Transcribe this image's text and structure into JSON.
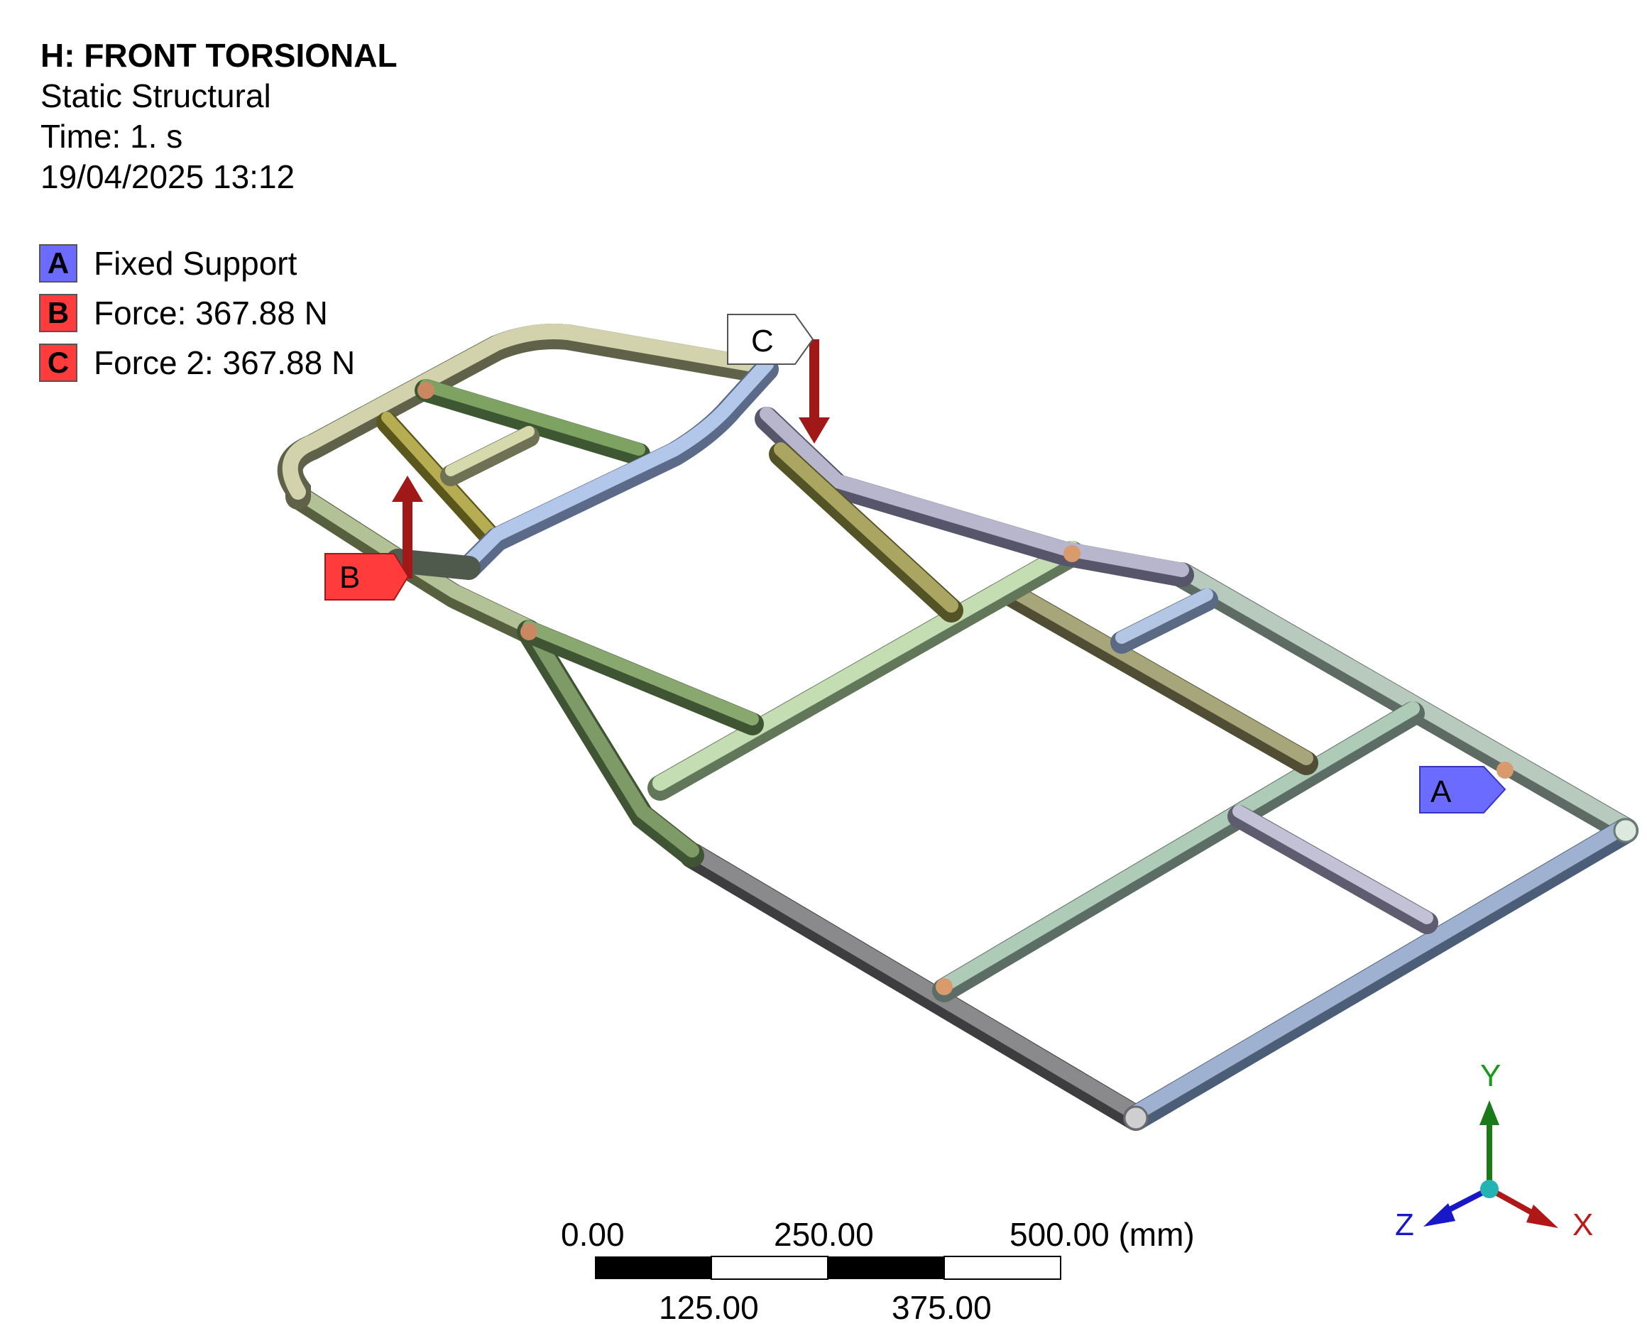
{
  "header": {
    "title": "H: FRONT TORSIONAL",
    "analysis_type": "Static Structural",
    "time": "Time: 1. s",
    "timestamp": "19/04/2025 13:12"
  },
  "legend": [
    {
      "key": "A",
      "label": "Fixed Support",
      "color": "#6b6bff"
    },
    {
      "key": "B",
      "label": "Force: 367.88 N",
      "color": "#ff3b3b"
    },
    {
      "key": "C",
      "label": "Force 2: 367.88 N",
      "color": "#ff3b3b"
    }
  ],
  "model": {
    "tags": {
      "a": "A",
      "b": "B",
      "c": "C"
    }
  },
  "scale_bar": {
    "top_labels": [
      "0.00",
      "250.00",
      "500.00 (mm)"
    ],
    "bottom_labels": [
      "125.00",
      "375.00"
    ]
  },
  "triad": {
    "x": "X",
    "y": "Y",
    "z": "Z"
  }
}
